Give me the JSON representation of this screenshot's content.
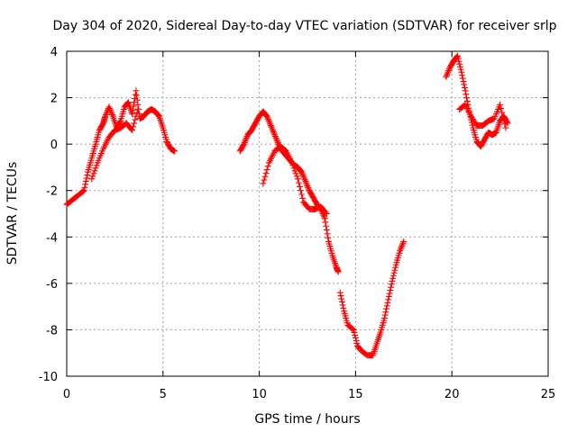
{
  "chart_data": {
    "type": "scatter",
    "title": "Day 304 of 2020, Sidereal Day-to-day VTEC variation (SDTVAR) for receiver srlp",
    "xlabel": "GPS time / hours",
    "ylabel": "SDTVAR / TECUs",
    "xlim": [
      0,
      25
    ],
    "ylim": [
      -10,
      4
    ],
    "xticks": [
      0,
      5,
      10,
      15,
      20,
      25
    ],
    "yticks": [
      -10,
      -8,
      -6,
      -4,
      -2,
      0,
      2,
      4
    ],
    "xtick_labels": [
      "0",
      "5",
      "10",
      "15",
      "20",
      "25"
    ],
    "ytick_labels": [
      "-10",
      "-8",
      "-6",
      "-4",
      "-2",
      "0",
      "2",
      "4"
    ],
    "grid": true,
    "marker": "+",
    "color": "#ff0000",
    "series": [
      {
        "name": "SDTVAR",
        "segments": [
          {
            "x": [
              0.0,
              0.3,
              0.6,
              0.9,
              1.1,
              1.3,
              1.5,
              1.7,
              1.9,
              2.0,
              2.2,
              2.4,
              2.6,
              2.8,
              3.0,
              3.2,
              3.4,
              3.6,
              3.8,
              4.0,
              4.2,
              4.4,
              4.6,
              4.8,
              5.0,
              5.2,
              5.4,
              5.6
            ],
            "y": [
              -2.6,
              -2.4,
              -2.2,
              -2.0,
              -1.2,
              -0.6,
              0.0,
              0.6,
              0.9,
              1.2,
              1.6,
              1.2,
              0.7,
              1.0,
              1.6,
              1.8,
              1.3,
              2.3,
              1.1,
              1.2,
              1.4,
              1.5,
              1.4,
              1.2,
              0.7,
              0.1,
              -0.2,
              -0.3
            ]
          },
          {
            "x": [
              1.3,
              1.6,
              1.9,
              2.2,
              2.5,
              2.8,
              3.1,
              3.4,
              3.7
            ],
            "y": [
              -1.5,
              -0.8,
              -0.2,
              0.3,
              0.6,
              0.7,
              0.9,
              0.6,
              1.5
            ]
          },
          {
            "x": [
              9.0,
              9.2,
              9.4,
              9.6,
              9.8,
              10.0,
              10.2,
              10.4,
              10.6,
              10.8,
              11.0,
              11.2,
              11.4,
              11.6,
              11.8,
              12.0,
              12.2,
              12.4,
              12.6,
              12.8,
              13.0,
              13.2,
              13.4,
              13.6,
              13.8,
              14.0,
              14.1
            ],
            "y": [
              -0.3,
              0.0,
              0.4,
              0.6,
              0.9,
              1.2,
              1.4,
              1.2,
              0.8,
              0.4,
              0.0,
              -0.3,
              -0.5,
              -0.7,
              -0.9,
              -1.0,
              -1.2,
              -1.6,
              -2.0,
              -2.3,
              -2.6,
              -2.8,
              -3.2,
              -4.2,
              -4.8,
              -5.3,
              -5.5
            ]
          },
          {
            "x": [
              10.2,
              10.5,
              10.8,
              11.1,
              11.4,
              11.7,
              12.0,
              12.3,
              12.6,
              12.9,
              13.2,
              13.5
            ],
            "y": [
              -1.7,
              -0.8,
              -0.3,
              -0.1,
              -0.3,
              -0.8,
              -1.5,
              -2.5,
              -2.8,
              -2.8,
              -2.7,
              -3.0
            ]
          },
          {
            "x": [
              14.2,
              14.4,
              14.6,
              14.9,
              15.1,
              15.3,
              15.6,
              15.9,
              16.1,
              16.3,
              16.5,
              16.7,
              16.9,
              17.1,
              17.3,
              17.5
            ],
            "y": [
              -6.4,
              -7.2,
              -7.8,
              -8.0,
              -8.7,
              -8.9,
              -9.1,
              -9.1,
              -8.6,
              -8.1,
              -7.5,
              -6.7,
              -5.9,
              -5.2,
              -4.6,
              -4.2
            ]
          },
          {
            "x": [
              19.7,
              19.9,
              20.1,
              20.3,
              20.5,
              20.7,
              20.9,
              21.1,
              21.3,
              21.5,
              21.7,
              21.9,
              22.1,
              22.3,
              22.5,
              22.7,
              22.9
            ],
            "y": [
              2.9,
              3.3,
              3.6,
              3.8,
              3.1,
              2.3,
              1.4,
              0.7,
              0.1,
              -0.1,
              0.2,
              0.5,
              0.4,
              0.5,
              1.0,
              1.2,
              0.9
            ]
          },
          {
            "x": [
              20.4,
              20.7,
              21.0,
              21.3,
              21.6,
              21.9,
              22.2,
              22.5,
              22.8
            ],
            "y": [
              1.5,
              1.7,
              1.2,
              0.8,
              0.8,
              1.0,
              1.1,
              1.7,
              0.7
            ]
          }
        ]
      }
    ]
  }
}
